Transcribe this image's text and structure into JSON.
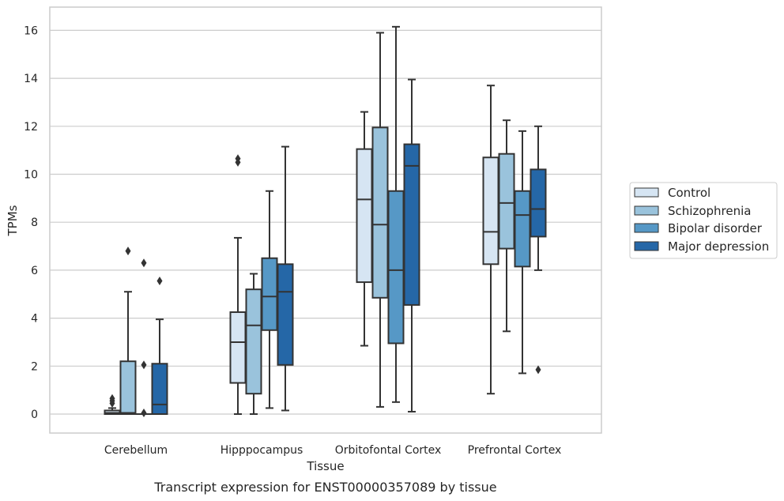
{
  "caption": "Transcript expression for ENST00000357089 by tissue",
  "chart_data": {
    "type": "box",
    "xlabel": "Tissue",
    "ylabel": "TPMs",
    "ylim": [
      -0.8,
      16.95
    ],
    "yticks": [
      0,
      2,
      4,
      6,
      8,
      10,
      12,
      14,
      16
    ],
    "grid": "horizontal",
    "legend_position": "right",
    "categories": [
      "Cerebellum",
      "Hipppocampus",
      "Orbitofontal Cortex",
      "Prefrontal Cortex"
    ],
    "series": [
      {
        "name": "Control",
        "color": "#d6e5f3",
        "boxes": [
          {
            "whislo": 0.0,
            "q1": 0.0,
            "med": 0.05,
            "q3": 0.15,
            "whishi": 0.25,
            "fliers": [
              0.45,
              0.55,
              0.65
            ]
          },
          {
            "whislo": 0.0,
            "q1": 1.3,
            "med": 3.0,
            "q3": 4.25,
            "whishi": 7.35,
            "fliers": [
              10.5,
              10.65
            ]
          },
          {
            "whislo": 2.85,
            "q1": 5.5,
            "med": 8.95,
            "q3": 11.05,
            "whishi": 12.6,
            "fliers": []
          },
          {
            "whislo": 0.85,
            "q1": 6.25,
            "med": 7.6,
            "q3": 10.7,
            "whishi": 13.7,
            "fliers": []
          }
        ]
      },
      {
        "name": "Schizophrenia",
        "color": "#9ac3dc",
        "boxes": [
          {
            "whislo": 0.0,
            "q1": 0.0,
            "med": 0.05,
            "q3": 2.2,
            "whishi": 5.1,
            "fliers": [
              6.8
            ]
          },
          {
            "whislo": 0.0,
            "q1": 0.85,
            "med": 3.7,
            "q3": 5.2,
            "whishi": 5.85,
            "fliers": []
          },
          {
            "whislo": 0.3,
            "q1": 4.85,
            "med": 7.9,
            "q3": 11.95,
            "whishi": 15.9,
            "fliers": []
          },
          {
            "whislo": 3.45,
            "q1": 6.9,
            "med": 8.8,
            "q3": 10.85,
            "whishi": 12.25,
            "fliers": []
          }
        ]
      },
      {
        "name": "Bipolar disorder",
        "color": "#5698c6",
        "boxes": [
          {
            "whislo": 0.0,
            "q1": 0.0,
            "med": 0.0,
            "q3": 0.0,
            "whishi": 0.0,
            "fliers": [
              2.05,
              6.3,
              0.05
            ]
          },
          {
            "whislo": 0.25,
            "q1": 3.5,
            "med": 4.9,
            "q3": 6.5,
            "whishi": 9.3,
            "fliers": []
          },
          {
            "whislo": 0.5,
            "q1": 2.95,
            "med": 6.0,
            "q3": 9.3,
            "whishi": 16.15,
            "fliers": []
          },
          {
            "whislo": 1.7,
            "q1": 6.15,
            "med": 8.3,
            "q3": 9.3,
            "whishi": 11.8,
            "fliers": []
          }
        ]
      },
      {
        "name": "Major depression",
        "color": "#2567a7",
        "boxes": [
          {
            "whislo": 0.0,
            "q1": 0.0,
            "med": 0.4,
            "q3": 2.1,
            "whishi": 3.95,
            "fliers": [
              5.55
            ]
          },
          {
            "whislo": 0.15,
            "q1": 2.05,
            "med": 5.1,
            "q3": 6.25,
            "whishi": 11.15,
            "fliers": []
          },
          {
            "whislo": 0.1,
            "q1": 4.55,
            "med": 10.35,
            "q3": 11.25,
            "whishi": 13.95,
            "fliers": []
          },
          {
            "whislo": 6.0,
            "q1": 7.4,
            "med": 8.55,
            "q3": 10.2,
            "whishi": 12.0,
            "fliers": [
              1.85
            ]
          }
        ]
      }
    ]
  }
}
